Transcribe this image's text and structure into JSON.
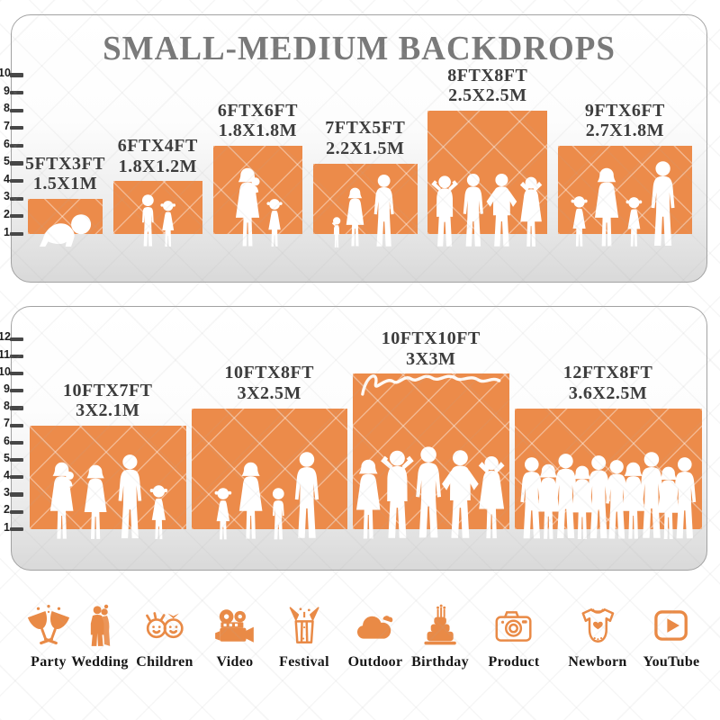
{
  "title": "SMALL-MEDIUM BACKDROPS",
  "colors": {
    "accent_orange": "#EC8B4A",
    "icon_orange": "#E98A46",
    "title_gray": "#797979",
    "label_dark": "#3C3C3C",
    "panel_border": "#A2A2A2",
    "panel_bg_bottom": "#D9D9D9",
    "ruler_tick": "#474747",
    "ruler_number": "#1E1E1E",
    "silhouette_white": "#FFFFFF",
    "category_label": "#161616"
  },
  "panels": [
    {
      "name": "small-medium-backdrops",
      "ruler_ticks": [
        1,
        2,
        3,
        4,
        5,
        6,
        7,
        8,
        9,
        10
      ],
      "backdrops": [
        {
          "size_ft": "5FTX3FT",
          "size_m": "1.5X1M",
          "width_ft": 5,
          "height_ft": 3,
          "figures": [
            {
              "t": "baby",
              "h": 2.1
            }
          ]
        },
        {
          "size_ft": "6FTX4FT",
          "size_m": "1.8X1.2M",
          "width_ft": 6,
          "height_ft": 4,
          "figures": [
            {
              "t": "boy",
              "h": 3.1
            },
            {
              "t": "girl",
              "h": 2.75
            }
          ]
        },
        {
          "size_ft": "6FTX6FT",
          "size_m": "1.8X1.8M",
          "width_ft": 6,
          "height_ft": 6,
          "figures": [
            {
              "t": "woman-baby",
              "h": 4.6
            },
            {
              "t": "girl",
              "h": 2.85
            }
          ]
        },
        {
          "size_ft": "7FTX5FT",
          "size_m": "2.2X1.5M",
          "width_ft": 7,
          "height_ft": 5,
          "figures": [
            {
              "t": "toddler",
              "h": 1.85
            },
            {
              "t": "woman",
              "h": 3.45
            },
            {
              "t": "man",
              "h": 4.25
            }
          ]
        },
        {
          "size_ft": "8FTX8FT",
          "size_m": "2.5X2.5M",
          "width_ft": 8,
          "height_ft": 8,
          "figures": [
            {
              "t": "man-arms-up",
              "h": 4.2
            },
            {
              "t": "man",
              "h": 4.3
            },
            {
              "t": "man-akimbo",
              "h": 4.3
            },
            {
              "t": "woman-sun",
              "h": 4.15
            }
          ]
        },
        {
          "size_ft": "9FTX6FT",
          "size_m": "2.7X1.8M",
          "width_ft": 9,
          "height_ft": 6,
          "figures": [
            {
              "t": "girl",
              "h": 3.0
            },
            {
              "t": "woman",
              "h": 4.6
            },
            {
              "t": "girl",
              "h": 2.95
            },
            {
              "t": "man",
              "h": 5.0
            }
          ]
        }
      ]
    },
    {
      "name": "medium-large-backdrops",
      "ruler_ticks": [
        1,
        2,
        3,
        4,
        5,
        6,
        7,
        8,
        9,
        10,
        11,
        12
      ],
      "backdrops": [
        {
          "size_ft": "10FTX7FT",
          "size_m": "3X2.1M",
          "width_ft": 10,
          "height_ft": 7,
          "figures": [
            {
              "t": "woman-baby",
              "h": 4.6
            },
            {
              "t": "woman",
              "h": 4.45
            },
            {
              "t": "man",
              "h": 5.05
            },
            {
              "t": "girl",
              "h": 3.3
            }
          ]
        },
        {
          "size_ft": "10FTX8FT",
          "size_m": "3X2.5M",
          "width_ft": 10,
          "height_ft": 8,
          "figures": [
            {
              "t": "girl",
              "h": 3.15
            },
            {
              "t": "woman",
              "h": 4.6
            },
            {
              "t": "boy",
              "h": 3.15
            },
            {
              "t": "man",
              "h": 5.2
            }
          ]
        },
        {
          "size_ft": "10FTX10FT",
          "size_m": "3X3M",
          "width_ft": 10,
          "height_ft": 10,
          "watermark": true,
          "figures": [
            {
              "t": "woman",
              "h": 4.75
            },
            {
              "t": "man-arms-up",
              "h": 5.3
            },
            {
              "t": "man",
              "h": 5.5
            },
            {
              "t": "man-akimbo",
              "h": 5.3
            },
            {
              "t": "woman-sun",
              "h": 5.0
            }
          ]
        },
        {
          "size_ft": "12FTX8FT",
          "size_m": "3.6X2.5M",
          "width_ft": 12,
          "height_ft": 8,
          "figures": [
            {
              "t": "man",
              "h": 4.9
            },
            {
              "t": "woman",
              "h": 4.5
            },
            {
              "t": "man",
              "h": 5.1
            },
            {
              "t": "woman",
              "h": 4.4
            },
            {
              "t": "man",
              "h": 5.0
            },
            {
              "t": "man",
              "h": 4.75
            },
            {
              "t": "woman",
              "h": 4.6
            },
            {
              "t": "man",
              "h": 5.2
            },
            {
              "t": "woman",
              "h": 4.35
            },
            {
              "t": "man",
              "h": 4.9
            }
          ]
        }
      ]
    }
  ],
  "categories": [
    {
      "label": "Party",
      "icon": "party-icon"
    },
    {
      "label": "Wedding",
      "icon": "wedding-icon"
    },
    {
      "label": "Children",
      "icon": "children-icon"
    },
    {
      "label": "Video",
      "icon": "video-icon"
    },
    {
      "label": "Festival",
      "icon": "festival-icon"
    },
    {
      "label": "Outdoor",
      "icon": "outdoor-icon"
    },
    {
      "label": "Birthday",
      "icon": "birthday-icon"
    },
    {
      "label": "Product",
      "icon": "product-icon"
    },
    {
      "label": "Newborn",
      "icon": "newborn-icon"
    },
    {
      "label": "YouTube",
      "icon": "youtube-icon"
    }
  ]
}
